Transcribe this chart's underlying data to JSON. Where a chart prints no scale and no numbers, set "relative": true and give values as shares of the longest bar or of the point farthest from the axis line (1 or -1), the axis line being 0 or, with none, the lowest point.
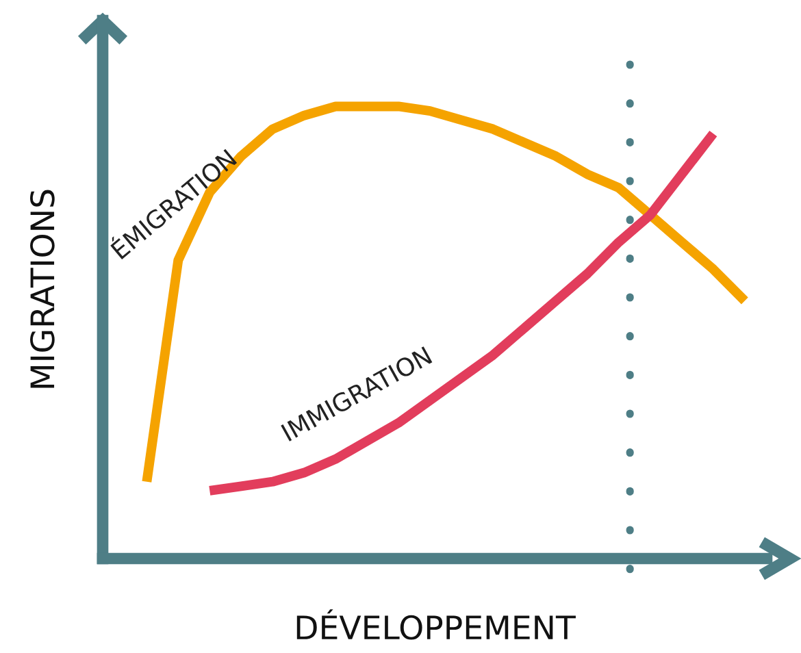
{
  "chart_data": {
    "type": "line",
    "relative": true,
    "xlabel": "DÉVELOPPEMENT",
    "ylabel": "MIGRATIONS",
    "legend": false,
    "marker": "none",
    "line_style": "solid",
    "categories": [
      null,
      null,
      null,
      null,
      null,
      null,
      null,
      null,
      null,
      null,
      null,
      null,
      null,
      null,
      null,
      null,
      null,
      null,
      null,
      null
    ],
    "series": [
      {
        "name": "ÉMIGRATION",
        "color": "#f5a300",
        "values": [
          0.17,
          0.66,
          0.81,
          0.89,
          0.95,
          0.98,
          1.0,
          1.0,
          1.0,
          0.99,
          0.97,
          0.95,
          0.92,
          0.89,
          0.85,
          0.82,
          0.76,
          0.7,
          0.64,
          0.57
        ]
      },
      {
        "name": "IMMIGRATION",
        "color": "#e23d5c",
        "values": [
          null,
          null,
          0.15,
          0.16,
          0.17,
          0.19,
          0.22,
          0.26,
          0.3,
          0.35,
          0.4,
          0.45,
          0.51,
          0.57,
          0.63,
          0.7,
          0.76,
          0.85,
          0.94,
          null
        ]
      }
    ]
  }
}
